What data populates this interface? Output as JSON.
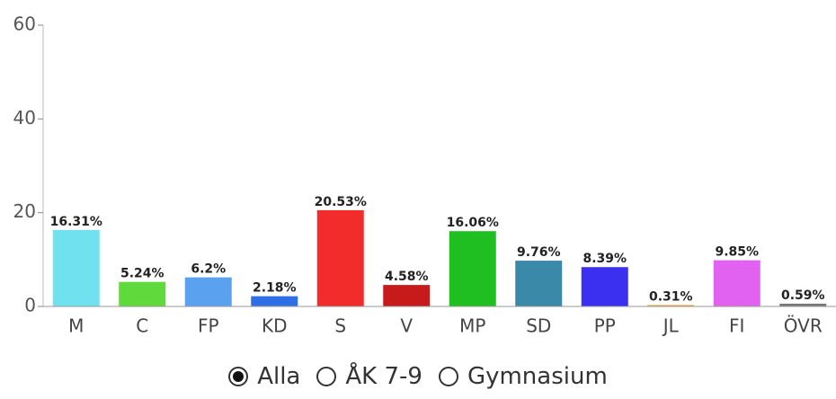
{
  "chart_data": {
    "type": "bar",
    "categories": [
      "M",
      "C",
      "FP",
      "KD",
      "S",
      "V",
      "MP",
      "SD",
      "PP",
      "JL",
      "FI",
      "ÖVR"
    ],
    "values": [
      16.31,
      5.24,
      6.2,
      2.18,
      20.53,
      4.58,
      16.06,
      9.76,
      8.39,
      0.31,
      9.85,
      0.59
    ],
    "value_labels": [
      "16.31%",
      "5.24%",
      "6.2%",
      "2.18%",
      "20.53%",
      "4.58%",
      "16.06%",
      "9.76%",
      "8.39%",
      "0.31%",
      "9.85%",
      "0.59%"
    ],
    "colors": [
      "#6fe1ef",
      "#5fd93b",
      "#5aa2ef",
      "#2f6fe6",
      "#f22b2b",
      "#c71a1a",
      "#1fbf22",
      "#3a89a8",
      "#3b2ff0",
      "#f0a535",
      "#e162f0",
      "#777777"
    ],
    "ylim": [
      0,
      60
    ],
    "yticks": [
      0,
      20,
      40,
      60
    ]
  },
  "controls": {
    "options": [
      "Alla",
      "ÅK 7-9",
      "Gymnasium"
    ],
    "selected": 0
  }
}
